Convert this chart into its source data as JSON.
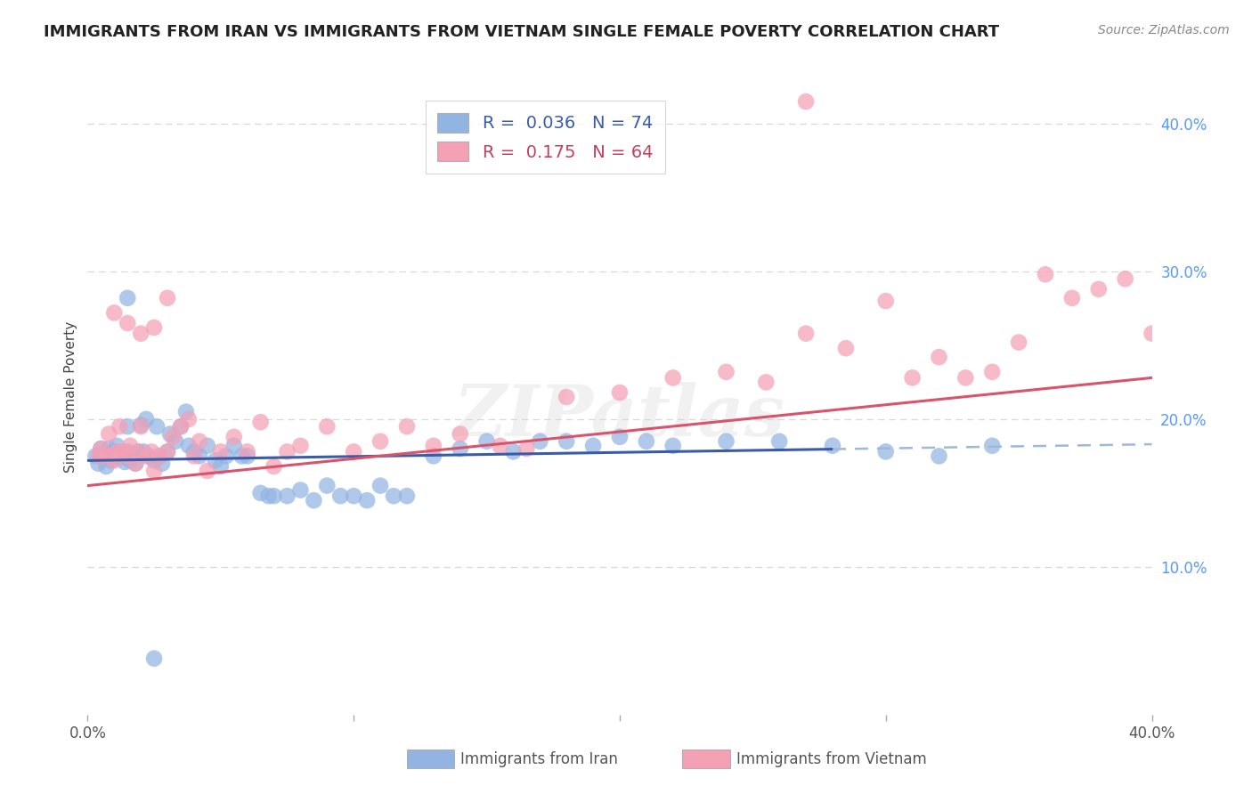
{
  "title": "IMMIGRANTS FROM IRAN VS IMMIGRANTS FROM VIETNAM SINGLE FEMALE POVERTY CORRELATION CHART",
  "source": "Source: ZipAtlas.com",
  "xlabel_iran": "Immigrants from Iran",
  "xlabel_vietnam": "Immigrants from Vietnam",
  "ylabel": "Single Female Poverty",
  "xlim": [
    0.0,
    0.4
  ],
  "ylim": [
    0.0,
    0.43
  ],
  "iran_color": "#92b4e3",
  "vietnam_color": "#f4a0b5",
  "iran_line_color": "#3a5ca8",
  "vietnam_line_color": "#d9546a",
  "dashed_color": "#a0b8d8",
  "R_iran": 0.036,
  "N_iran": 74,
  "R_vietnam": 0.175,
  "N_vietnam": 64,
  "watermark": "ZIPatlas",
  "ytick_color": "#5599ff",
  "grid_color": "#d8d8d8",
  "title_color": "#222222",
  "source_color": "#888888",
  "iran_line_start_y": 0.172,
  "iran_line_end_y": 0.183,
  "vietnam_line_start_y": 0.155,
  "vietnam_line_end_y": 0.228,
  "iran_line_x_end": 0.28,
  "iran_scatter_x": [
    0.003,
    0.004,
    0.005,
    0.005,
    0.006,
    0.007,
    0.008,
    0.009,
    0.01,
    0.01,
    0.011,
    0.012,
    0.013,
    0.014,
    0.015,
    0.015,
    0.016,
    0.017,
    0.018,
    0.019,
    0.02,
    0.021,
    0.022,
    0.023,
    0.025,
    0.026,
    0.027,
    0.028,
    0.03,
    0.031,
    0.033,
    0.035,
    0.037,
    0.038,
    0.04,
    0.042,
    0.045,
    0.048,
    0.05,
    0.052,
    0.055,
    0.058,
    0.06,
    0.065,
    0.068,
    0.07,
    0.075,
    0.08,
    0.085,
    0.09,
    0.095,
    0.1,
    0.105,
    0.11,
    0.115,
    0.12,
    0.13,
    0.14,
    0.15,
    0.16,
    0.17,
    0.18,
    0.19,
    0.2,
    0.21,
    0.22,
    0.24,
    0.26,
    0.28,
    0.3,
    0.32,
    0.34,
    0.015,
    0.025
  ],
  "iran_scatter_y": [
    0.175,
    0.17,
    0.175,
    0.18,
    0.175,
    0.168,
    0.18,
    0.172,
    0.175,
    0.178,
    0.182,
    0.174,
    0.176,
    0.171,
    0.195,
    0.178,
    0.172,
    0.176,
    0.17,
    0.178,
    0.196,
    0.178,
    0.2,
    0.175,
    0.172,
    0.195,
    0.175,
    0.17,
    0.178,
    0.19,
    0.185,
    0.195,
    0.205,
    0.182,
    0.178,
    0.175,
    0.182,
    0.172,
    0.168,
    0.175,
    0.182,
    0.175,
    0.175,
    0.15,
    0.148,
    0.148,
    0.148,
    0.152,
    0.145,
    0.155,
    0.148,
    0.148,
    0.145,
    0.155,
    0.148,
    0.148,
    0.175,
    0.18,
    0.185,
    0.178,
    0.185,
    0.185,
    0.182,
    0.188,
    0.185,
    0.182,
    0.185,
    0.185,
    0.182,
    0.178,
    0.175,
    0.182,
    0.282,
    0.038
  ],
  "vietnam_scatter_x": [
    0.004,
    0.005,
    0.006,
    0.008,
    0.009,
    0.01,
    0.011,
    0.012,
    0.013,
    0.015,
    0.016,
    0.018,
    0.019,
    0.02,
    0.022,
    0.024,
    0.025,
    0.027,
    0.03,
    0.032,
    0.035,
    0.038,
    0.04,
    0.042,
    0.045,
    0.05,
    0.055,
    0.06,
    0.065,
    0.07,
    0.075,
    0.08,
    0.09,
    0.1,
    0.11,
    0.12,
    0.13,
    0.14,
    0.155,
    0.165,
    0.18,
    0.2,
    0.22,
    0.24,
    0.255,
    0.27,
    0.285,
    0.3,
    0.31,
    0.32,
    0.33,
    0.34,
    0.35,
    0.36,
    0.37,
    0.38,
    0.39,
    0.4,
    0.27,
    0.01,
    0.015,
    0.02,
    0.025,
    0.03
  ],
  "vietnam_scatter_y": [
    0.175,
    0.18,
    0.175,
    0.19,
    0.175,
    0.172,
    0.178,
    0.195,
    0.178,
    0.175,
    0.182,
    0.17,
    0.178,
    0.195,
    0.175,
    0.178,
    0.165,
    0.175,
    0.178,
    0.188,
    0.195,
    0.2,
    0.175,
    0.185,
    0.165,
    0.178,
    0.188,
    0.178,
    0.198,
    0.168,
    0.178,
    0.182,
    0.195,
    0.178,
    0.185,
    0.195,
    0.182,
    0.19,
    0.182,
    0.18,
    0.215,
    0.218,
    0.228,
    0.232,
    0.225,
    0.258,
    0.248,
    0.28,
    0.228,
    0.242,
    0.228,
    0.232,
    0.252,
    0.298,
    0.282,
    0.288,
    0.295,
    0.258,
    0.415,
    0.272,
    0.265,
    0.258,
    0.262,
    0.282
  ]
}
